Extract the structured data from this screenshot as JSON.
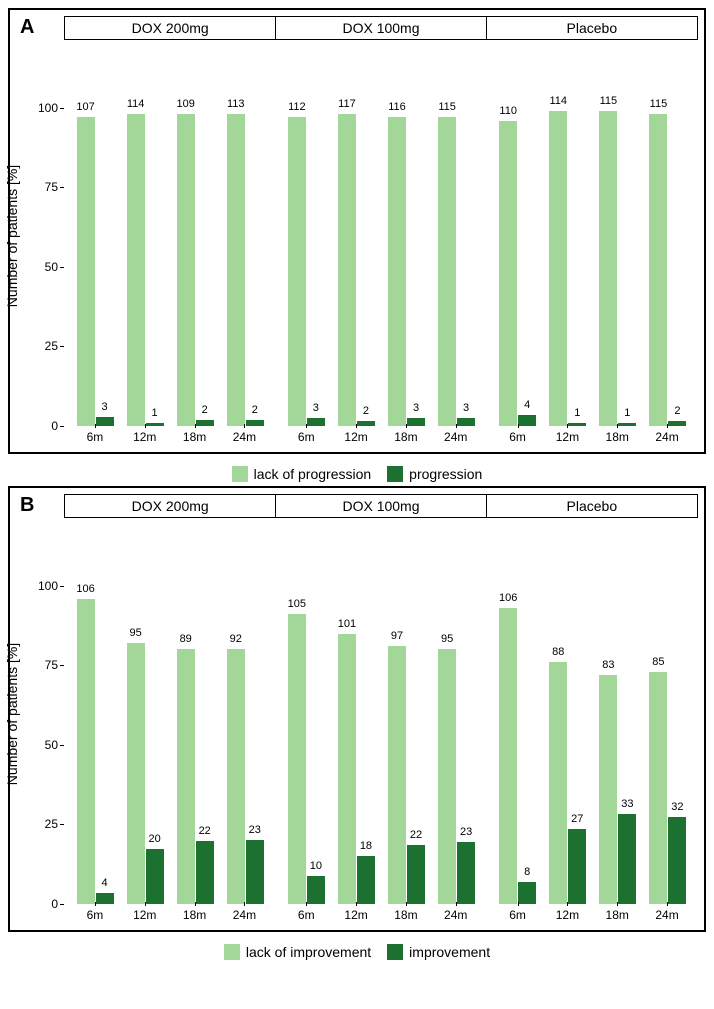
{
  "colors": {
    "light": "#a3d79a",
    "dark": "#1c7030",
    "border": "#000000",
    "bg": "#ffffff"
  },
  "fontsize": {
    "axis_label": 14,
    "tick": 12,
    "bar_label": 11,
    "facet": 14,
    "legend": 14,
    "panel_letter": 20
  },
  "y": {
    "min": 0,
    "max": 110,
    "ticks": [
      0,
      25,
      50,
      75,
      100
    ],
    "label": "Number of patients [%]"
  },
  "x_ticks": [
    "6m",
    "12m",
    "18m",
    "24m"
  ],
  "facets": [
    "DOX 200mg",
    "DOX 100mg",
    "Placebo"
  ],
  "panels": [
    {
      "letter": "A",
      "legend": [
        "lack of progression",
        "progression"
      ],
      "groups": [
        {
          "bars": [
            {
              "l": 107,
              "lh": 97,
              "d": 3,
              "dh": 2.7
            },
            {
              "l": 114,
              "lh": 98,
              "d": 1,
              "dh": 0.9
            },
            {
              "l": 109,
              "lh": 98,
              "d": 2,
              "dh": 1.8
            },
            {
              "l": 113,
              "lh": 98,
              "d": 2,
              "dh": 1.8
            }
          ]
        },
        {
          "bars": [
            {
              "l": 112,
              "lh": 97,
              "d": 3,
              "dh": 2.6
            },
            {
              "l": 117,
              "lh": 98,
              "d": 2,
              "dh": 1.7
            },
            {
              "l": 116,
              "lh": 97,
              "d": 3,
              "dh": 2.5
            },
            {
              "l": 115,
              "lh": 97,
              "d": 3,
              "dh": 2.5
            }
          ]
        },
        {
          "bars": [
            {
              "l": 110,
              "lh": 96,
              "d": 4,
              "dh": 3.5
            },
            {
              "l": 114,
              "lh": 99,
              "d": 1,
              "dh": 0.9
            },
            {
              "l": 115,
              "lh": 99,
              "d": 1,
              "dh": 0.9
            },
            {
              "l": 115,
              "lh": 98,
              "d": 2,
              "dh": 1.7
            }
          ]
        }
      ]
    },
    {
      "letter": "B",
      "legend": [
        "lack of improvement",
        "improvement"
      ],
      "groups": [
        {
          "bars": [
            {
              "l": 106,
              "lh": 96,
              "d": 4,
              "dh": 3.6
            },
            {
              "l": 95,
              "lh": 82,
              "d": 20,
              "dh": 17.4
            },
            {
              "l": 89,
              "lh": 80,
              "d": 22,
              "dh": 19.8
            },
            {
              "l": 92,
              "lh": 80,
              "d": 23,
              "dh": 20
            }
          ]
        },
        {
          "bars": [
            {
              "l": 105,
              "lh": 91,
              "d": 10,
              "dh": 8.7
            },
            {
              "l": 101,
              "lh": 85,
              "d": 18,
              "dh": 15.1
            },
            {
              "l": 97,
              "lh": 81,
              "d": 22,
              "dh": 18.5
            },
            {
              "l": 95,
              "lh": 80,
              "d": 23,
              "dh": 19.5
            }
          ]
        },
        {
          "bars": [
            {
              "l": 106,
              "lh": 93,
              "d": 8,
              "dh": 7
            },
            {
              "l": 88,
              "lh": 76,
              "d": 27,
              "dh": 23.5
            },
            {
              "l": 83,
              "lh": 72,
              "d": 33,
              "dh": 28.4
            },
            {
              "l": 85,
              "lh": 73,
              "d": 32,
              "dh": 27.4
            }
          ]
        }
      ]
    }
  ]
}
